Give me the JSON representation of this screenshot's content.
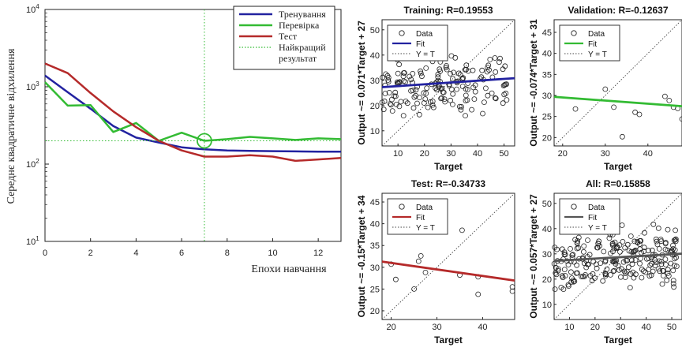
{
  "perf": {
    "ylabel": "Середнє квадратичне відхилення",
    "xlabel": "Епохи навчання",
    "xticks": [
      "0",
      "2",
      "4",
      "6",
      "8",
      "10",
      "12"
    ],
    "yticks": [
      {
        "base": "10",
        "exp": "1"
      },
      {
        "base": "10",
        "exp": "2"
      },
      {
        "base": "10",
        "exp": "3"
      },
      {
        "base": "10",
        "exp": "4"
      }
    ],
    "legend": [
      "Тренування",
      "Перевірка",
      "Тест",
      "Найкращий",
      "результат"
    ]
  },
  "colors": {
    "train": "#2222a0",
    "valid": "#33bb33",
    "test": "#b52a2a",
    "best": "#33bb33",
    "all": "#555555"
  },
  "chart_data": [
    {
      "type": "line",
      "log_y": true,
      "xlim": [
        0,
        13
      ],
      "ylim": [
        10,
        10000
      ],
      "x": [
        0,
        1,
        2,
        3,
        4,
        5,
        6,
        7,
        8,
        9,
        10,
        11,
        12,
        13
      ],
      "series": [
        {
          "name": "Тренування",
          "values": [
            1400,
            850,
            520,
            310,
            220,
            190,
            165,
            155,
            150,
            148,
            147,
            146,
            145,
            145
          ]
        },
        {
          "name": "Перевірка",
          "values": [
            1150,
            570,
            580,
            260,
            340,
            200,
            255,
            200,
            210,
            225,
            215,
            205,
            215,
            210
          ]
        },
        {
          "name": "Тест",
          "values": [
            2000,
            1500,
            830,
            480,
            300,
            200,
            150,
            125,
            125,
            130,
            125,
            110,
            115,
            120
          ]
        }
      ],
      "best": {
        "epoch": 7,
        "value": 200,
        "label": "Найкращий результат"
      }
    },
    {
      "type": "scatter",
      "title": "Training: R=0.19553",
      "xlabel": "Target",
      "ylabel": "Output ~= 0.071*Target + 27",
      "xlim": [
        4,
        54
      ],
      "ylim": [
        4,
        54
      ],
      "xticks": [
        10,
        20,
        30,
        40,
        50
      ],
      "yticks": [
        10,
        20,
        30,
        40,
        50
      ],
      "fit": {
        "slope": 0.071,
        "intercept": 27
      },
      "legend": [
        "Data",
        "Fit",
        "Y = T"
      ]
    },
    {
      "type": "scatter",
      "title": "Validation: R=-0.12637",
      "xlabel": "Target",
      "ylabel": "Output ~= -0.074*Target + 31",
      "xlim": [
        18,
        48
      ],
      "ylim": [
        18,
        48
      ],
      "xticks": [
        20,
        30,
        40
      ],
      "yticks": [
        20,
        25,
        30,
        35,
        40,
        45
      ],
      "fit": {
        "slope": -0.074,
        "intercept": 31
      },
      "legend": [
        "Data",
        "Fit",
        "Y = T"
      ],
      "points": [
        [
          23,
          26.8
        ],
        [
          30,
          31.5
        ],
        [
          32,
          27.2
        ],
        [
          34,
          20.2
        ],
        [
          37,
          26
        ],
        [
          38,
          25.5
        ],
        [
          44,
          29.8
        ],
        [
          45,
          28.8
        ],
        [
          46,
          27.2
        ],
        [
          47,
          26.9
        ],
        [
          48,
          24.4
        ]
      ]
    },
    {
      "type": "scatter",
      "title": "Test: R=-0.34733",
      "xlabel": "Target",
      "ylabel": "Output ~= -0.15*Target + 34",
      "xlim": [
        18,
        47
      ],
      "ylim": [
        18,
        47
      ],
      "xticks": [
        20,
        30,
        40
      ],
      "yticks": [
        20,
        25,
        30,
        35,
        40,
        45
      ],
      "fit": {
        "slope": -0.15,
        "intercept": 34
      },
      "legend": [
        "Data",
        "Fit",
        "Y = T"
      ],
      "points": [
        [
          20,
          30.7
        ],
        [
          21,
          27.2
        ],
        [
          26,
          31.4
        ],
        [
          26.5,
          32.6
        ],
        [
          25,
          25
        ],
        [
          27.5,
          28.8
        ],
        [
          35,
          28.2
        ],
        [
          35.5,
          38.5
        ],
        [
          39,
          23.8
        ],
        [
          39,
          27.8
        ],
        [
          46.5,
          24.5
        ],
        [
          46.5,
          25.5
        ]
      ]
    },
    {
      "type": "scatter",
      "title": "All: R=0.15858",
      "xlabel": "Target",
      "ylabel": "Output ~= 0.057*Target + 27",
      "xlim": [
        4,
        54
      ],
      "ylim": [
        4,
        54
      ],
      "xticks": [
        10,
        20,
        30,
        40,
        50
      ],
      "yticks": [
        10,
        20,
        30,
        40,
        50
      ],
      "fit": {
        "slope": 0.057,
        "intercept": 27
      },
      "legend": [
        "Data",
        "Fit",
        "Y = T"
      ]
    }
  ]
}
